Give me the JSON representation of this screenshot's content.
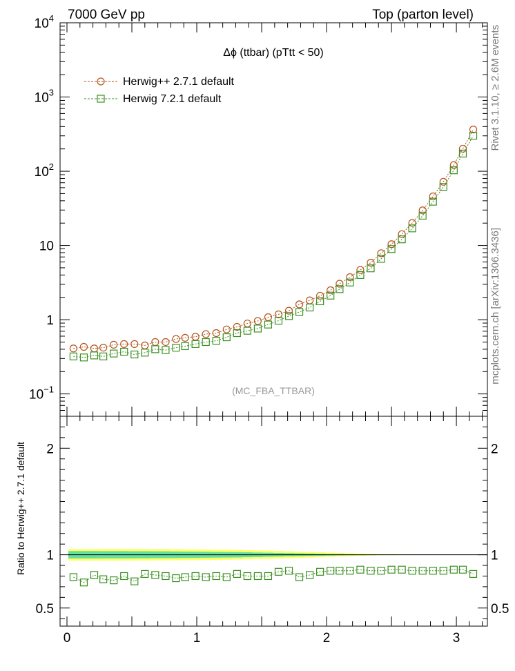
{
  "header": {
    "left": "7000 GeV pp",
    "right": "Top (parton level)"
  },
  "side_labels": {
    "rivet": "Rivet 3.1.10, ≥ 2.6M events",
    "mcplots": "mcplots.cern.ch [arXiv:1306.3436]"
  },
  "chart_data": [
    {
      "type": "scatter",
      "title": "Δϕ (ttbar) (pTtt < 50)",
      "watermark": "(MC_FBA_TTBAR)",
      "yscale": "log",
      "xlim": [
        0,
        3.2
      ],
      "ylim": [
        0.05,
        10000
      ],
      "y_ticks": [
        {
          "value": 0.1,
          "base": "10",
          "exp": "−1"
        },
        {
          "value": 1,
          "base": "1",
          "exp": ""
        },
        {
          "value": 10,
          "base": "10",
          "exp": ""
        },
        {
          "value": 100,
          "base": "10",
          "exp": "2"
        },
        {
          "value": 1000,
          "base": "10",
          "exp": "3"
        },
        {
          "value": 10000,
          "base": "10",
          "exp": "4"
        }
      ],
      "legend_position": "top-left",
      "x": [
        0.05,
        0.13,
        0.21,
        0.28,
        0.36,
        0.44,
        0.52,
        0.6,
        0.68,
        0.76,
        0.84,
        0.91,
        0.99,
        1.07,
        1.15,
        1.23,
        1.31,
        1.39,
        1.47,
        1.55,
        1.63,
        1.71,
        1.79,
        1.87,
        1.95,
        2.03,
        2.1,
        2.18,
        2.26,
        2.34,
        2.42,
        2.5,
        2.58,
        2.66,
        2.74,
        2.82,
        2.9,
        2.98,
        3.05,
        3.13
      ],
      "series": [
        {
          "name": "Herwig++ 2.7.1 default",
          "color": "#b5541c",
          "marker": "circle",
          "values": [
            0.41,
            0.43,
            0.41,
            0.42,
            0.46,
            0.47,
            0.47,
            0.45,
            0.5,
            0.5,
            0.55,
            0.57,
            0.59,
            0.64,
            0.66,
            0.74,
            0.8,
            0.89,
            0.96,
            1.08,
            1.18,
            1.32,
            1.61,
            1.82,
            2.1,
            2.49,
            3.05,
            3.74,
            4.68,
            5.85,
            7.86,
            10.4,
            14.2,
            20.1,
            29.7,
            45.8,
            72.1,
            121,
            201,
            365
          ]
        },
        {
          "name": "Herwig 7.2.1 default",
          "color": "#3a8f1f",
          "marker": "square",
          "values": [
            0.32,
            0.31,
            0.33,
            0.32,
            0.35,
            0.37,
            0.34,
            0.36,
            0.4,
            0.39,
            0.42,
            0.44,
            0.47,
            0.5,
            0.52,
            0.58,
            0.66,
            0.71,
            0.76,
            0.86,
            0.97,
            1.12,
            1.27,
            1.46,
            1.77,
            2.11,
            2.58,
            3.17,
            4.0,
            4.92,
            6.61,
            8.94,
            12.1,
            17.0,
            25.2,
            38.9,
            61.4,
            103,
            173,
            301
          ]
        }
      ]
    },
    {
      "type": "scatter",
      "ylabel": "Ratio to Herwig++ 2.7.1 default",
      "xlim": [
        0,
        3.2
      ],
      "ylim": [
        0.33,
        2.3
      ],
      "x_ticks": [
        0,
        1,
        2,
        3
      ],
      "y_ticks": [
        0.5,
        1,
        2
      ],
      "reference_line": 1,
      "band_yellow_halfwidth": [
        0.055,
        0.055,
        0.055,
        0.055,
        0.055,
        0.054,
        0.054,
        0.054,
        0.053,
        0.053,
        0.052,
        0.051,
        0.05,
        0.049,
        0.048,
        0.047,
        0.045,
        0.043,
        0.041,
        0.039,
        0.036,
        0.033,
        0.03,
        0.027,
        0.023,
        0.02,
        0.016,
        0.013,
        0.01,
        0.007,
        0.005,
        0.004,
        0.003,
        0.002,
        0.002,
        0.001,
        0.001,
        0.001,
        0.001,
        0.001
      ],
      "band_green_halfwidth": [
        0.035,
        0.035,
        0.035,
        0.034,
        0.034,
        0.034,
        0.033,
        0.033,
        0.032,
        0.032,
        0.031,
        0.03,
        0.029,
        0.028,
        0.027,
        0.026,
        0.025,
        0.023,
        0.021,
        0.019,
        0.017,
        0.015,
        0.013,
        0.011,
        0.009,
        0.007,
        0.006,
        0.005,
        0.004,
        0.003,
        0.002,
        0.002,
        0.001,
        0.001,
        0.001,
        0.001,
        0.001,
        0.0005,
        0.0005,
        0.0005
      ],
      "series": [
        {
          "name": "Herwig 7.2.1 default",
          "color": "#3a8f1f",
          "marker": "square",
          "values": [
            0.79,
            0.74,
            0.81,
            0.77,
            0.76,
            0.8,
            0.75,
            0.82,
            0.81,
            0.8,
            0.78,
            0.79,
            0.8,
            0.79,
            0.8,
            0.79,
            0.82,
            0.8,
            0.8,
            0.8,
            0.84,
            0.85,
            0.79,
            0.81,
            0.84,
            0.85,
            0.85,
            0.85,
            0.86,
            0.85,
            0.85,
            0.86,
            0.86,
            0.85,
            0.85,
            0.85,
            0.85,
            0.86,
            0.86,
            0.82
          ]
        }
      ]
    }
  ]
}
